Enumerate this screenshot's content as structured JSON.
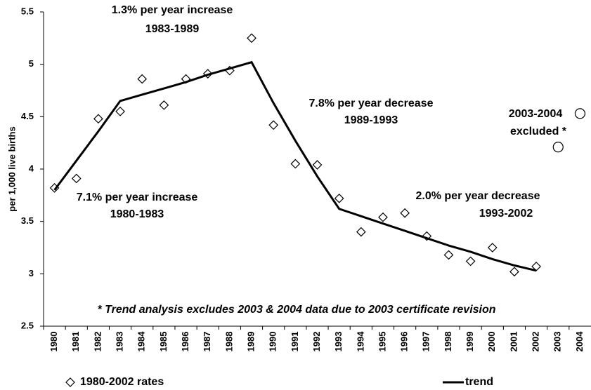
{
  "chart_data": {
    "type": "line",
    "y_label": "per 1,000 live births",
    "categories": [
      "1980",
      "1981",
      "1982",
      "1983",
      "1984",
      "1985",
      "1986",
      "1987",
      "1988",
      "1989",
      "1990",
      "1991",
      "1992",
      "1993",
      "1994",
      "1995",
      "1996",
      "1997",
      "1998",
      "1999",
      "2000",
      "2001",
      "2002",
      "2003",
      "2004"
    ],
    "series": [
      {
        "name": "1980-2002 rates",
        "marker": "diamond",
        "color": "#000000",
        "values": [
          3.82,
          3.91,
          4.48,
          4.55,
          4.86,
          4.61,
          4.86,
          4.91,
          4.94,
          5.25,
          4.42,
          4.05,
          4.04,
          3.72,
          3.4,
          3.54,
          3.58,
          3.36,
          3.18,
          3.12,
          3.25,
          3.02,
          3.07,
          null,
          null
        ]
      },
      {
        "marker": "circle",
        "color": "#000000",
        "values": [
          null,
          null,
          null,
          null,
          null,
          null,
          null,
          null,
          null,
          null,
          null,
          null,
          null,
          null,
          null,
          null,
          null,
          null,
          null,
          null,
          null,
          null,
          null,
          4.21,
          4.53
        ]
      },
      {
        "name": "trend",
        "marker": "line",
        "color": "#000000",
        "values": [
          3.8,
          4.08,
          4.36,
          4.65,
          4.71,
          4.77,
          4.83,
          4.9,
          4.96,
          5.02,
          4.63,
          4.27,
          3.93,
          3.62,
          3.55,
          3.48,
          3.41,
          3.34,
          3.27,
          3.21,
          3.14,
          3.08,
          3.03,
          null,
          null
        ]
      }
    ],
    "ylim": [
      2.5,
      5.5
    ],
    "yticks": [
      2.5,
      3,
      3.5,
      4,
      4.5,
      5,
      5.5
    ],
    "grid": false,
    "legend": "bottom",
    "annotations": [
      {
        "lines": [
          "1.3% per year increase",
          "1983-1989"
        ]
      },
      {
        "lines": [
          "7.8% per year decrease",
          "1989-1993"
        ]
      },
      {
        "lines": [
          "2003-2004",
          "excluded *"
        ]
      },
      {
        "lines": [
          "7.1% per year increase",
          "1980-1983"
        ]
      },
      {
        "lines": [
          "2.0% per year decrease",
          "1993-2002"
        ]
      }
    ],
    "note": "* Trend analysis excludes 2003 & 2004 data due to 2003 certificate revision"
  }
}
